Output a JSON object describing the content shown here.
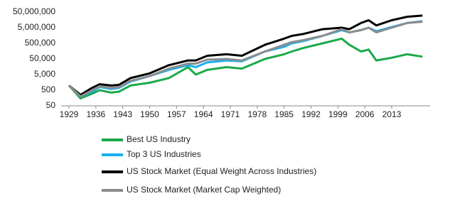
{
  "chart_data": {
    "type": "line",
    "log_scale": true,
    "grid": false,
    "legend_position": "bottom",
    "x": [
      1929,
      1932,
      1935,
      1937,
      1940,
      1942,
      1945,
      1950,
      1955,
      1960,
      1962,
      1965,
      1970,
      1974,
      1980,
      1985,
      1987,
      1990,
      1995,
      2000,
      2002,
      2005,
      2007,
      2009,
      2013,
      2017,
      2021
    ],
    "xlim": [
      1929,
      2023
    ],
    "xticks": [
      1929,
      1936,
      1943,
      1950,
      1957,
      1964,
      1971,
      1978,
      1985,
      1992,
      1999,
      2006,
      2013
    ],
    "ylim": [
      50,
      50000000
    ],
    "yticks": [
      50,
      500,
      {
        "value": 5000,
        "label": "5,000"
      },
      {
        "value": 50000,
        "label": "50,000"
      },
      {
        "value": 500000,
        "label": "500,000"
      },
      {
        "value": 5000000,
        "label": "5,000,000"
      },
      {
        "value": 50000000,
        "label": "50,000,000"
      }
    ],
    "series": [
      {
        "name": "Best US Industry",
        "color": "#1aaa4a",
        "values": [
          1000,
          150,
          300,
          500,
          350,
          400,
          1000,
          1500,
          3000,
          15000,
          5000,
          10000,
          15000,
          12000,
          50000,
          100000,
          150000,
          250000,
          500000,
          1000000,
          400000,
          150000,
          200000,
          40000,
          60000,
          100000,
          70000
        ]
      },
      {
        "name": "Top 3 US Industries",
        "color": "#1ab0f0",
        "values": [
          1000,
          200,
          400,
          800,
          600,
          700,
          1800,
          4000,
          10000,
          20000,
          15000,
          30000,
          40000,
          35000,
          150000,
          300000,
          500000,
          700000,
          1500000,
          3500000,
          2500000,
          3500000,
          5000000,
          3000000,
          5500000,
          10000000,
          13000000
        ]
      },
      {
        "name": "US Stock Market (Equal Weight Across Industries)",
        "color": "#000000",
        "values": [
          1000,
          250,
          700,
          1200,
          1000,
          1100,
          3000,
          6000,
          20000,
          40000,
          40000,
          80000,
          100000,
          80000,
          400000,
          1000000,
          1500000,
          2000000,
          4000000,
          5000000,
          4000000,
          10000000,
          15000000,
          7000000,
          15000000,
          25000000,
          30000000
        ]
      },
      {
        "name": "US Stock Market (Market Cap Weighted)",
        "color": "#8c8c8c",
        "values": [
          1000,
          200,
          500,
          900,
          700,
          800,
          2000,
          4000,
          12000,
          25000,
          25000,
          45000,
          50000,
          40000,
          150000,
          400000,
          600000,
          800000,
          1500000,
          4000000,
          2500000,
          3500000,
          5000000,
          2500000,
          5000000,
          10000000,
          12000000
        ]
      }
    ]
  }
}
